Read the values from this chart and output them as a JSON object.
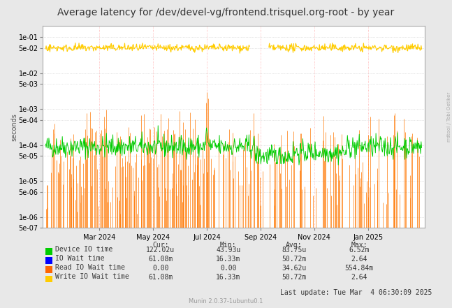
{
  "title": "Average latency for /dev/devel-vg/frontend.trisquel.org-root - by year",
  "ylabel": "seconds",
  "right_label": "rrdtool / Tobi Oetiker",
  "background_color": "#e8e8e8",
  "plot_bg_color": "#ffffff",
  "ylim_min": 5e-07,
  "ylim_max": 0.2,
  "legend_items": [
    {
      "label": "Device IO time",
      "color": "#00cc00"
    },
    {
      "label": "IO Wait time",
      "color": "#0000ff"
    },
    {
      "label": "Read IO Wait time",
      "color": "#ff6600"
    },
    {
      "label": "Write IO Wait time",
      "color": "#ffcc00"
    }
  ],
  "legend_table": {
    "headers": [
      "Cur:",
      "Min:",
      "Avg:",
      "Max:"
    ],
    "rows": [
      [
        "122.02u",
        "43.93u",
        "83.75u",
        "6.52m"
      ],
      [
        "61.08m",
        "16.33m",
        "50.72m",
        "2.64"
      ],
      [
        "0.00",
        "0.00",
        "34.62u",
        "554.84m"
      ],
      [
        "61.08m",
        "16.33m",
        "50.72m",
        "2.64"
      ]
    ]
  },
  "footer": "Munin 2.0.37-1ubuntu0.1",
  "last_update": "Last update: Tue Mar  4 06:30:09 2025",
  "title_fontsize": 10,
  "axis_fontsize": 7,
  "legend_fontsize": 7,
  "month_labels": [
    "Mar 2024",
    "May 2024",
    "Jul 2024",
    "Sep 2024",
    "Nov 2024",
    "Jan 2025"
  ],
  "month_fractions": [
    0.1429,
    0.2857,
    0.4286,
    0.5714,
    0.7143,
    0.8571
  ],
  "yticks": [
    5e-07,
    1e-06,
    5e-06,
    1e-05,
    5e-05,
    0.0001,
    0.0005,
    0.001,
    0.005,
    0.01,
    0.05,
    0.1
  ],
  "ytick_labels": [
    "5e-07",
    "1e-06",
    "5e-06",
    "1e-05",
    "5e-05",
    "1e-04",
    "5e-04",
    "1e-03",
    "5e-03",
    "1e-02",
    "5e-02",
    "1e-01"
  ]
}
